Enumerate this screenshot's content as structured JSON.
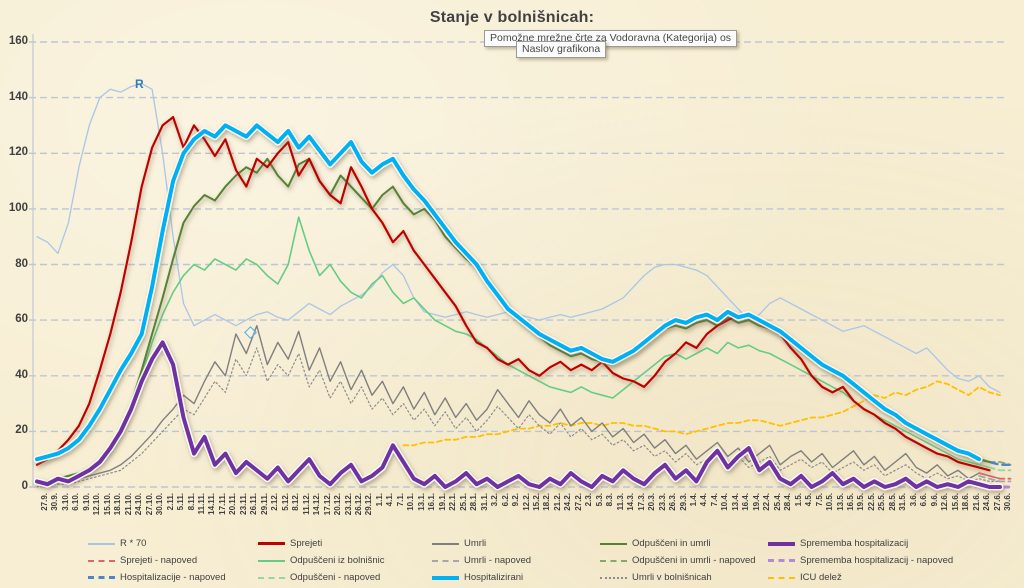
{
  "title": "Stanje v bolnišnicah:",
  "tooltips": {
    "back": "Pomožne mrežne črte za Vodoravna (Kategorija)  os",
    "front": "Naslov grafikona"
  },
  "annotation_r": "R",
  "chart_data": {
    "type": "line",
    "title": "Stanje v bolnišnicah:",
    "xlabel": "",
    "ylabel": "",
    "ylim": [
      0,
      160
    ],
    "y_ticks": [
      0,
      20,
      40,
      60,
      80,
      100,
      120,
      140,
      160
    ],
    "grid": "horizontal-dashed",
    "legend_position": "bottom",
    "x_labels": [
      "27.9.",
      "30.9.",
      "3.10.",
      "6.10.",
      "9.10.",
      "12.10.",
      "15.10.",
      "18.10.",
      "21.10.",
      "24.10.",
      "27.10.",
      "30.10.",
      "2.11.",
      "5.11.",
      "8.11.",
      "11.11.",
      "14.11.",
      "17.11.",
      "20.11.",
      "23.11.",
      "26.11.",
      "29.11.",
      "2.12.",
      "5.12.",
      "8.12.",
      "11.12.",
      "14.12.",
      "17.12.",
      "20.12.",
      "23.12.",
      "26.12.",
      "29.12.",
      "1.1.",
      "4.1.",
      "7.1.",
      "10.1.",
      "13.1.",
      "16.1.",
      "19.1.",
      "22.1.",
      "25.1.",
      "28.1.",
      "31.1.",
      "3.2.",
      "6.2.",
      "9.2.",
      "12.2.",
      "15.2.",
      "18.2.",
      "21.2.",
      "24.2.",
      "27.2.",
      "2.3.",
      "5.3.",
      "8.3.",
      "11.3.",
      "14.3.",
      "17.3.",
      "20.3.",
      "23.3.",
      "26.3.",
      "29.3.",
      "1.4.",
      "4.4.",
      "7.4.",
      "10.4.",
      "13.4.",
      "16.4.",
      "19.4.",
      "22.4.",
      "25.4.",
      "28.4.",
      "1.5.",
      "4.5.",
      "7.5.",
      "10.5.",
      "13.5.",
      "16.5.",
      "19.5.",
      "22.5.",
      "25.5.",
      "28.5.",
      "31.5.",
      "3.6.",
      "6.6.",
      "9.6.",
      "12.6.",
      "15.6.",
      "18.6.",
      "21.6.",
      "24.6.",
      "27.6.",
      "30.6."
    ],
    "series": [
      {
        "name": "R * 70",
        "color": "#a9c6e8",
        "width": 1.3,
        "dash": "",
        "values": [
          90,
          88,
          84,
          95,
          115,
          130,
          140,
          143,
          142,
          144,
          145,
          143,
          120,
          90,
          66,
          58,
          60,
          62,
          60,
          58,
          60,
          62,
          63,
          61,
          60,
          63,
          66,
          64,
          62,
          65,
          67,
          69,
          72,
          77,
          80,
          76,
          68,
          63,
          62,
          61,
          62,
          63,
          62,
          61,
          62,
          63,
          62,
          61,
          60,
          61,
          62,
          61,
          62,
          63,
          64,
          66,
          68,
          72,
          76,
          79,
          80,
          80,
          79,
          78,
          76,
          72,
          68,
          64,
          60,
          62,
          66,
          68,
          66,
          64,
          62,
          60,
          58,
          56,
          57,
          58,
          56,
          54,
          52,
          50,
          48,
          50,
          46,
          42,
          39,
          38,
          40,
          36,
          34
        ]
      },
      {
        "name": "ICU delež",
        "color": "#ffc000",
        "width": 1.8,
        "dash": "5 3.5",
        "start": 35,
        "values": [
          15,
          15,
          16,
          16,
          17,
          17,
          18,
          18,
          19,
          19,
          20,
          21,
          21,
          22,
          22,
          23,
          22,
          23,
          23,
          22,
          23,
          23,
          22,
          22,
          21,
          20,
          20,
          19,
          20,
          21,
          22,
          23,
          23,
          24,
          24,
          23,
          22,
          23,
          24,
          25,
          25,
          26,
          27,
          29,
          31,
          33,
          32,
          34,
          33,
          35,
          36,
          38,
          37,
          35,
          33,
          36,
          34,
          33
        ]
      },
      {
        "name": "Umrli v bolnišnicah",
        "color": "#8c8c8c",
        "width": 1.2,
        "dash": "1.6 2.6",
        "values": [
          0,
          1,
          1,
          1,
          2,
          3,
          4,
          5,
          6,
          9,
          12,
          16,
          20,
          24,
          28,
          26,
          32,
          38,
          34,
          46,
          40,
          50,
          38,
          44,
          40,
          48,
          36,
          42,
          32,
          38,
          30,
          36,
          28,
          32,
          26,
          30,
          24,
          28,
          22,
          27,
          21,
          25,
          20,
          24,
          29,
          25,
          21,
          26,
          22,
          19,
          23,
          18,
          21,
          17,
          19,
          15,
          17,
          13,
          15,
          11,
          13,
          9,
          12,
          8,
          10,
          12,
          9,
          11,
          7,
          9,
          11,
          6,
          8,
          10,
          7,
          9,
          5,
          7,
          9,
          6,
          8,
          4,
          6,
          8,
          5,
          3,
          5,
          3,
          4,
          2,
          3,
          2,
          2
        ]
      },
      {
        "name": "Umrli",
        "color": "#7f7f7f",
        "width": 1.4,
        "dash": "",
        "values": [
          1,
          1,
          2,
          2,
          3,
          4,
          5,
          6,
          8,
          11,
          15,
          19,
          24,
          28,
          33,
          30,
          38,
          45,
          40,
          55,
          48,
          58,
          44,
          52,
          46,
          56,
          42,
          50,
          38,
          45,
          35,
          42,
          33,
          38,
          30,
          36,
          28,
          34,
          26,
          32,
          25,
          30,
          24,
          28,
          35,
          30,
          25,
          31,
          26,
          23,
          28,
          22,
          25,
          20,
          23,
          18,
          21,
          16,
          19,
          14,
          17,
          12,
          15,
          10,
          13,
          16,
          11,
          14,
          9,
          12,
          15,
          8,
          11,
          13,
          9,
          12,
          7,
          10,
          13,
          8,
          11,
          6,
          9,
          12,
          7,
          5,
          8,
          4,
          6,
          3,
          5,
          4,
          3
        ]
      },
      {
        "name": "Odpuščeni iz bolnišnic",
        "color": "#66cc85",
        "width": 1.6,
        "dash": "",
        "values": [
          1,
          2,
          2,
          3,
          4,
          6,
          8,
          12,
          18,
          28,
          40,
          52,
          62,
          70,
          76,
          80,
          78,
          82,
          80,
          78,
          82,
          80,
          76,
          73,
          80,
          97,
          85,
          76,
          80,
          74,
          70,
          68,
          73,
          76,
          70,
          66,
          68,
          64,
          60,
          58,
          56,
          55,
          53,
          50,
          47,
          44,
          42,
          40,
          38,
          36,
          35,
          34,
          36,
          34,
          33,
          32,
          35,
          38,
          41,
          44,
          47,
          48,
          46,
          48,
          50,
          48,
          52,
          50,
          51,
          49,
          48,
          46,
          44,
          42,
          40,
          38,
          36,
          34,
          31,
          28,
          26,
          24,
          22,
          20,
          18,
          16,
          14,
          12,
          10,
          9,
          8,
          7,
          null
        ]
      },
      {
        "name": "Umrli - napoved",
        "color": "#a6a6a6",
        "width": 1.8,
        "dash": "6 4",
        "start": 90,
        "values": [
          4,
          3,
          2,
          2
        ]
      },
      {
        "name": "Odpuščeni - napoved",
        "color": "#90d9a4",
        "width": 1.8,
        "dash": "6 4",
        "start": 90,
        "values": [
          8,
          7,
          6,
          6
        ]
      },
      {
        "name": "Odpuščeni in umrli - napoved",
        "color": "#86a96a",
        "width": 1.8,
        "dash": "6 4",
        "start": 90,
        "values": [
          10,
          9,
          9,
          8
        ]
      },
      {
        "name": "Sprejeti - napoved",
        "color": "#e06666",
        "width": 1.8,
        "dash": "6 4",
        "start": 90,
        "values": [
          5,
          4,
          3,
          3
        ]
      },
      {
        "name": "Sprememba hospitalizacij - napoved",
        "color": "#b28ad6",
        "width": 3,
        "dash": "6 6",
        "start": 90,
        "values": [
          1,
          1,
          0,
          0
        ]
      },
      {
        "name": "Hospitalizacije - napoved",
        "color": "#4a86c8",
        "width": 2.4,
        "dash": "7 5",
        "start": 90,
        "values": [
          10,
          9,
          8,
          8
        ]
      },
      {
        "name": "Odpuščeni in umrli",
        "color": "#548235",
        "width": 2,
        "dash": "",
        "glow": true,
        "values": [
          2,
          2,
          3,
          4,
          5,
          7,
          10,
          14,
          20,
          30,
          42,
          55,
          68,
          82,
          95,
          101,
          105,
          103,
          108,
          112,
          115,
          113,
          118,
          112,
          108,
          116,
          118,
          110,
          105,
          112,
          108,
          104,
          100,
          105,
          108,
          102,
          98,
          100,
          96,
          90,
          86,
          82,
          79,
          75,
          70,
          65,
          60,
          57,
          54,
          51,
          49,
          47,
          48,
          46,
          45,
          44,
          46,
          48,
          51,
          54,
          57,
          58,
          57,
          59,
          60,
          58,
          61,
          59,
          60,
          58,
          57,
          55,
          52,
          49,
          46,
          44,
          41,
          39,
          36,
          33,
          30,
          28,
          26,
          23,
          21,
          19,
          17,
          15,
          13,
          11,
          10,
          9,
          null
        ]
      },
      {
        "name": "Sprejeti",
        "color": "#c00000",
        "width": 2.2,
        "dash": "",
        "glow": true,
        "values": [
          8,
          10,
          13,
          17,
          22,
          30,
          42,
          55,
          70,
          88,
          108,
          122,
          130,
          133,
          122,
          130,
          125,
          119,
          125,
          114,
          108,
          118,
          115,
          120,
          124,
          112,
          118,
          110,
          105,
          102,
          115,
          108,
          100,
          95,
          88,
          92,
          85,
          80,
          75,
          70,
          65,
          58,
          52,
          50,
          46,
          44,
          46,
          42,
          40,
          43,
          45,
          42,
          44,
          42,
          45,
          41,
          39,
          38,
          36,
          40,
          45,
          48,
          52,
          50,
          55,
          58,
          60,
          62,
          61,
          59,
          57,
          55,
          50,
          46,
          40,
          36,
          34,
          36,
          31,
          28,
          26,
          23,
          21,
          18,
          16,
          14,
          12,
          11,
          9,
          8,
          7,
          6,
          null
        ]
      },
      {
        "name": "Hospitalizirani",
        "color": "#00b0f0",
        "width": 4,
        "dash": "",
        "glow": true,
        "casing": true,
        "values": [
          10,
          11,
          12,
          14,
          17,
          22,
          28,
          35,
          42,
          48,
          55,
          72,
          92,
          110,
          120,
          125,
          128,
          126,
          130,
          128,
          126,
          130,
          127,
          124,
          128,
          122,
          126,
          121,
          116,
          120,
          124,
          117,
          113,
          116,
          118,
          112,
          107,
          103,
          98,
          93,
          88,
          84,
          80,
          74,
          69,
          64,
          61,
          58,
          55,
          53,
          51,
          49,
          50,
          48,
          46,
          45,
          47,
          49,
          52,
          55,
          58,
          60,
          59,
          61,
          62,
          60,
          63,
          61,
          62,
          60,
          58,
          56,
          53,
          50,
          47,
          44,
          42,
          40,
          37,
          34,
          31,
          28,
          26,
          23,
          21,
          19,
          17,
          15,
          13,
          12,
          10,
          null,
          null
        ]
      },
      {
        "name": "Sprememba hospitalizacij",
        "color": "#7030a0",
        "width": 4,
        "dash": "",
        "glow": true,
        "casing": true,
        "values": [
          2,
          1,
          3,
          2,
          4,
          6,
          9,
          14,
          20,
          28,
          38,
          46,
          52,
          44,
          25,
          12,
          18,
          8,
          12,
          5,
          9,
          6,
          3,
          7,
          2,
          6,
          10,
          4,
          1,
          5,
          8,
          2,
          4,
          7,
          15,
          9,
          3,
          1,
          4,
          0,
          2,
          5,
          1,
          3,
          0,
          2,
          4,
          1,
          0,
          3,
          1,
          5,
          2,
          0,
          4,
          2,
          6,
          3,
          1,
          5,
          8,
          3,
          6,
          2,
          9,
          13,
          7,
          11,
          14,
          6,
          9,
          3,
          1,
          4,
          0,
          2,
          5,
          1,
          3,
          0,
          2,
          0,
          1,
          3,
          0,
          2,
          0,
          1,
          0,
          2,
          1,
          0,
          0
        ]
      }
    ]
  },
  "legend": {
    "items": [
      {
        "label": "R * 70",
        "color": "#a9c6e8",
        "style": "solid",
        "weight": 2,
        "col": 0,
        "row": 0
      },
      {
        "label": "Sprejeti - napoved",
        "color": "#e06666",
        "style": "dashed",
        "weight": 2,
        "col": 0,
        "row": 1
      },
      {
        "label": "Hospitalizacije - napoved",
        "color": "#4a86c8",
        "style": "dashed",
        "weight": 3,
        "col": 0,
        "row": 2
      },
      {
        "label": "Sprejeti",
        "color": "#c00000",
        "style": "solid",
        "weight": 3,
        "col": 1,
        "row": 0
      },
      {
        "label": "Odpuščeni iz bolnišnic",
        "color": "#66cc85",
        "style": "solid",
        "weight": 2,
        "col": 1,
        "row": 1
      },
      {
        "label": "Odpuščeni - napoved",
        "color": "#90d9a4",
        "style": "dashed",
        "weight": 2,
        "col": 1,
        "row": 2
      },
      {
        "label": "Umrli",
        "color": "#7f7f7f",
        "style": "solid",
        "weight": 2,
        "col": 2,
        "row": 0
      },
      {
        "label": "Umrli - napoved",
        "color": "#a6a6a6",
        "style": "dashed",
        "weight": 2,
        "col": 2,
        "row": 1
      },
      {
        "label": "Hospitalizirani",
        "color": "#00b0f0",
        "style": "solid",
        "weight": 4,
        "col": 2,
        "row": 2
      },
      {
        "label": "Odpuščeni in umrli",
        "color": "#548235",
        "style": "solid",
        "weight": 2,
        "col": 3,
        "row": 0
      },
      {
        "label": "Odpuščeni in umrli - napoved",
        "color": "#86a96a",
        "style": "dashed",
        "weight": 2,
        "col": 3,
        "row": 1
      },
      {
        "label": "Umrli v bolnišnicah",
        "color": "#8c8c8c",
        "style": "dotted",
        "weight": 2,
        "col": 3,
        "row": 2
      },
      {
        "label": "Sprememba hospitalizacij",
        "color": "#7030a0",
        "style": "solid",
        "weight": 4,
        "col": 4,
        "row": 0
      },
      {
        "label": "Sprememba hospitalizacij - napoved",
        "color": "#b28ad6",
        "style": "dashed",
        "weight": 3,
        "col": 4,
        "row": 1
      },
      {
        "label": "ICU delež",
        "color": "#ffc000",
        "style": "dashed",
        "weight": 2,
        "col": 4,
        "row": 2
      }
    ]
  }
}
